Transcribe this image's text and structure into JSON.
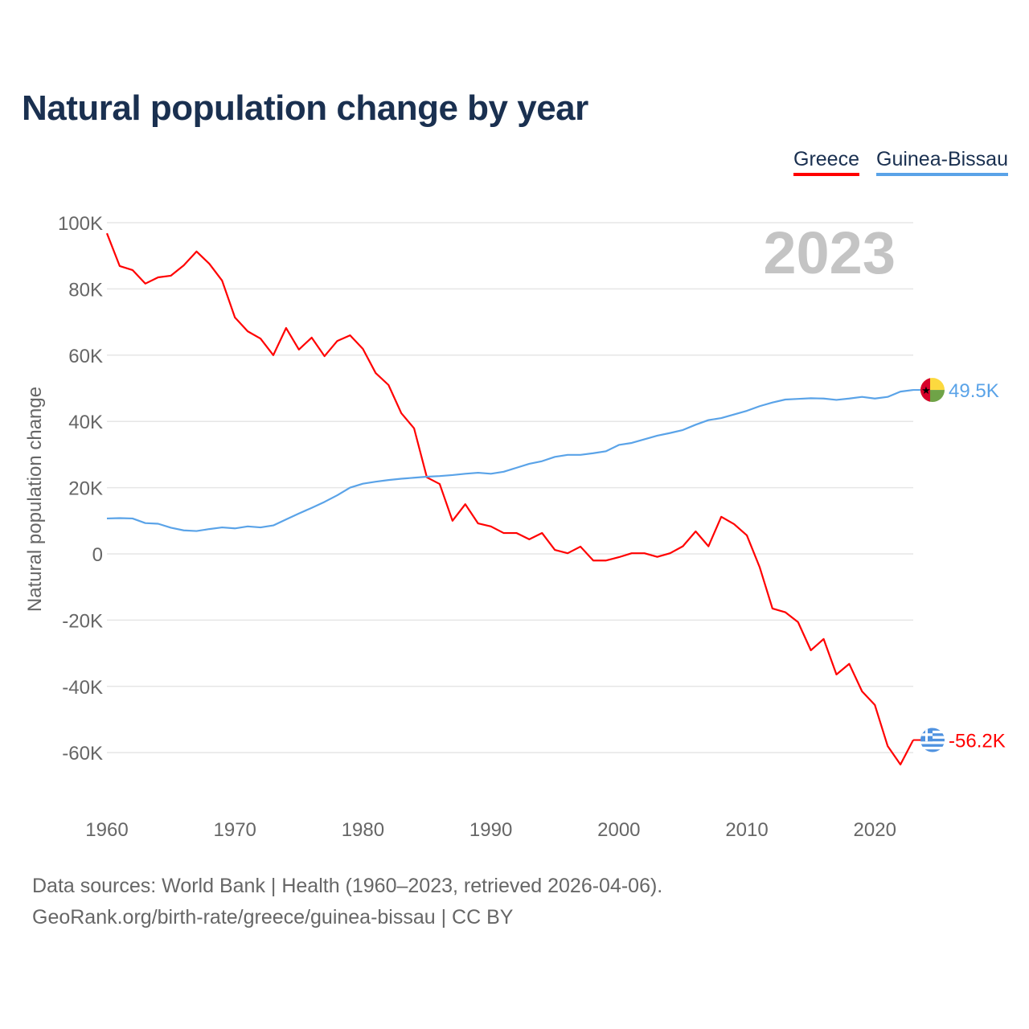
{
  "title": "Natural population change by year",
  "legend": [
    {
      "name": "Greece",
      "color": "#ff0000"
    },
    {
      "name": "Guinea-Bissau",
      "color": "#5aa3e8"
    }
  ],
  "year_label": "2023",
  "footer": {
    "line1": "Data sources: World Bank | Health (1960–2023, retrieved 2026-04-06).",
    "line2": "GeoRank.org/birth-rate/greece/guinea-bissau | CC BY"
  },
  "chart_data": {
    "type": "line",
    "title": "Natural population change by year",
    "xlabel": "",
    "ylabel": "Natural population change",
    "xlim": [
      1960,
      2023
    ],
    "ylim": [
      -75000,
      100000
    ],
    "x_ticks": [
      1960,
      1970,
      1980,
      1990,
      2000,
      2010,
      2020
    ],
    "x_tick_labels": [
      "1960",
      "1970",
      "1980",
      "1990",
      "2000",
      "2010",
      "2020"
    ],
    "y_ticks": [
      100000,
      80000,
      60000,
      40000,
      20000,
      0,
      -20000,
      -40000,
      -60000
    ],
    "y_tick_labels": [
      "100K",
      "80K",
      "60K",
      "40K",
      "20K",
      "0",
      "-20K",
      "-40K",
      "-60K"
    ],
    "grid": true,
    "legend_position": "top-right",
    "x": [
      1960,
      1961,
      1962,
      1963,
      1964,
      1965,
      1966,
      1967,
      1968,
      1969,
      1970,
      1971,
      1972,
      1973,
      1974,
      1975,
      1976,
      1977,
      1978,
      1979,
      1980,
      1981,
      1982,
      1983,
      1984,
      1985,
      1986,
      1987,
      1988,
      1989,
      1990,
      1991,
      1992,
      1993,
      1994,
      1995,
      1996,
      1997,
      1998,
      1999,
      2000,
      2001,
      2002,
      2003,
      2004,
      2005,
      2006,
      2007,
      2008,
      2009,
      2010,
      2011,
      2012,
      2013,
      2014,
      2015,
      2016,
      2017,
      2018,
      2019,
      2020,
      2021,
      2022,
      2023
    ],
    "series": [
      {
        "name": "Greece",
        "color": "#ff0000",
        "end_label": "-56.2K",
        "values": [
          96800,
          86900,
          85700,
          81600,
          83500,
          84000,
          87100,
          91300,
          87600,
          82500,
          71400,
          67200,
          65000,
          60000,
          68200,
          61700,
          65300,
          59700,
          64300,
          66000,
          61900,
          54600,
          51000,
          42500,
          37900,
          23100,
          21100,
          10000,
          15000,
          9200,
          8300,
          6300,
          6300,
          4400,
          6300,
          1200,
          200,
          2200,
          -2000,
          -2000,
          -1000,
          200,
          200,
          -900,
          200,
          2300,
          6800,
          2300,
          11200,
          9000,
          5600,
          -4000,
          -16500,
          -17600,
          -20600,
          -29100,
          -25700,
          -36400,
          -33200,
          -41500,
          -45600,
          -58000,
          -63600,
          -56200
        ]
      },
      {
        "name": "Guinea-Bissau",
        "color": "#5aa3e8",
        "end_label": "49.5K",
        "values": [
          10700,
          10800,
          10700,
          9300,
          9100,
          7900,
          7100,
          6900,
          7500,
          8000,
          7700,
          8300,
          8000,
          8600,
          10400,
          12200,
          13900,
          15700,
          17700,
          20000,
          21200,
          21800,
          22300,
          22700,
          23000,
          23300,
          23500,
          23800,
          24200,
          24500,
          24200,
          24800,
          26000,
          27200,
          28000,
          29300,
          29900,
          29900,
          30400,
          31000,
          32900,
          33500,
          34600,
          35700,
          36500,
          37400,
          39000,
          40400,
          41000,
          42100,
          43200,
          44600,
          45700,
          46600,
          46800,
          47000,
          46900,
          46500,
          46900,
          47400,
          46900,
          47400,
          49000,
          49500
        ]
      }
    ]
  }
}
